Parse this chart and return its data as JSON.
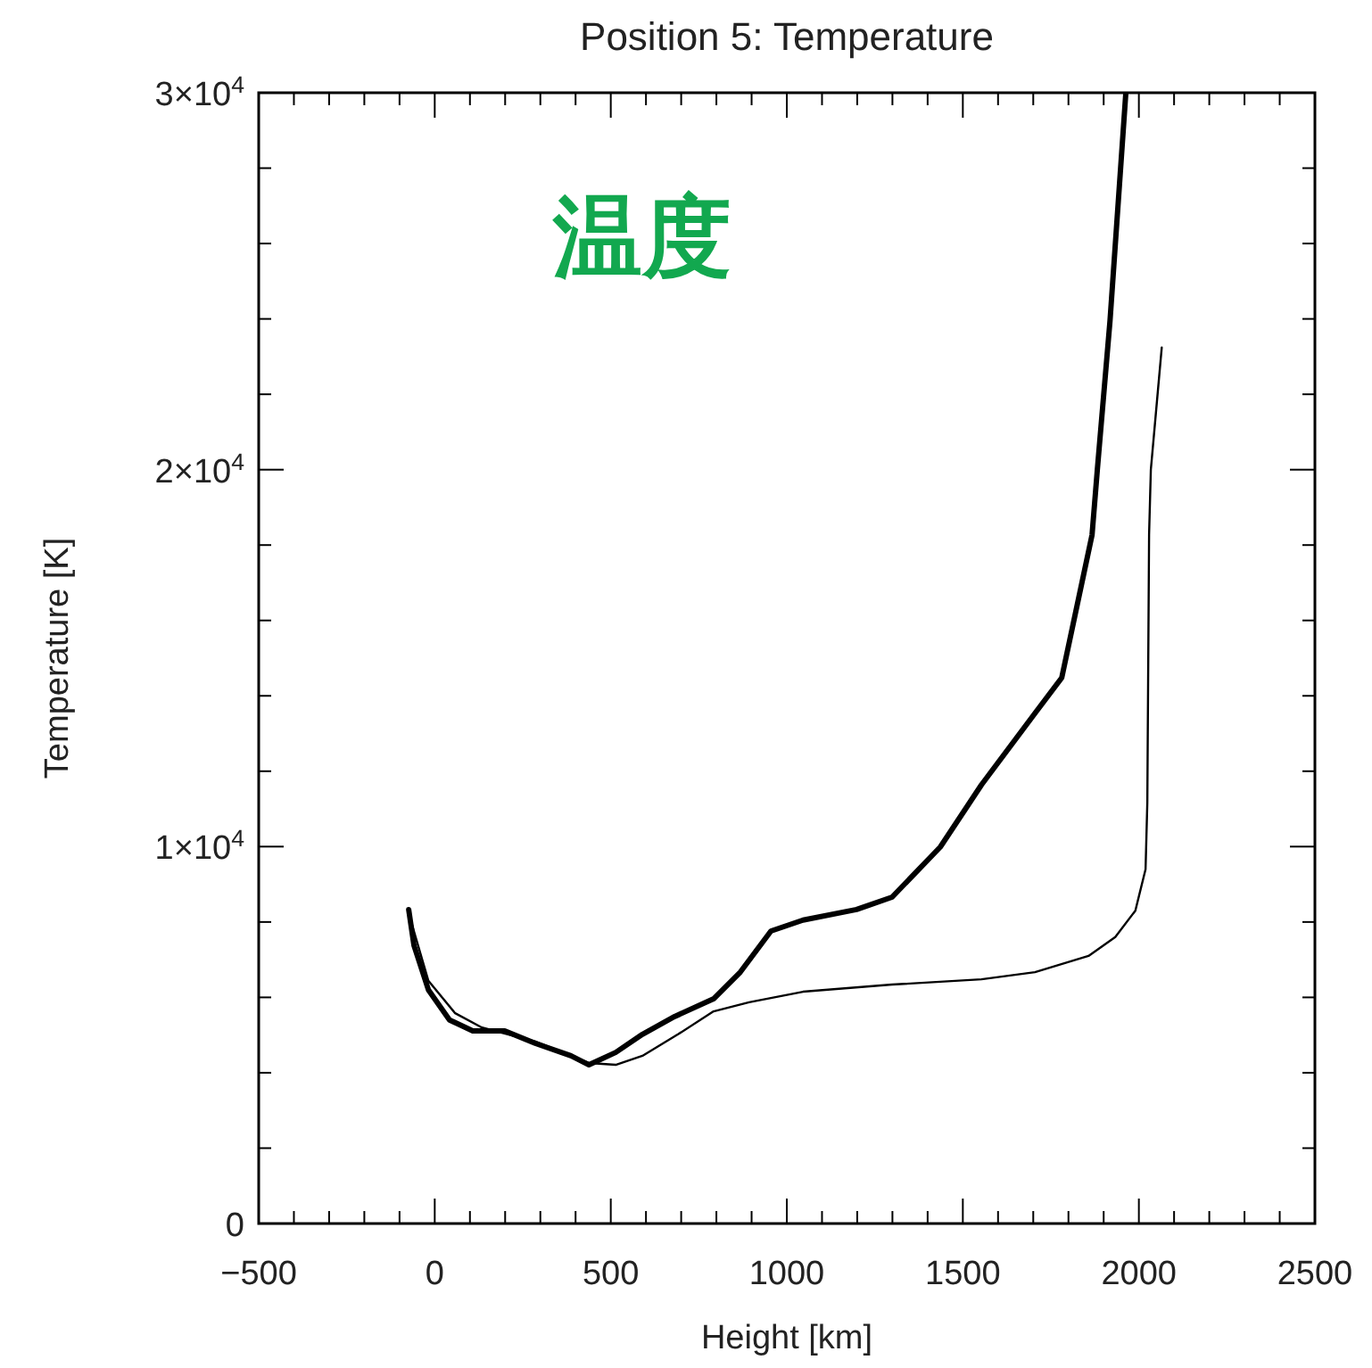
{
  "chart_data": {
    "type": "line",
    "title": "Position 5: Temperature",
    "xlabel": "Height [km]",
    "ylabel": "Temperature [K]",
    "annotations": [
      "温度"
    ],
    "xlim": [
      -500,
      2500
    ],
    "ylim": [
      0,
      30000
    ],
    "xticks": [
      -500,
      {
        "value": -400,
        "label": null
      },
      {
        "value": -300,
        "label": null
      },
      {
        "value": -200,
        "label": null
      },
      {
        "value": -100,
        "label": null
      },
      0,
      {
        "value": 100,
        "label": null
      },
      {
        "value": 200,
        "label": null
      },
      {
        "value": 300,
        "label": null
      },
      {
        "value": 400,
        "label": null
      },
      500,
      {
        "value": 600,
        "label": null
      },
      {
        "value": 700,
        "label": null
      },
      {
        "value": 800,
        "label": null
      },
      {
        "value": 900,
        "label": null
      },
      1000,
      {
        "value": 1100,
        "label": null
      },
      {
        "value": 1200,
        "label": null
      },
      {
        "value": 1300,
        "label": null
      },
      {
        "value": 1400,
        "label": null
      },
      1500,
      {
        "value": 1600,
        "label": null
      },
      {
        "value": 1700,
        "label": null
      },
      {
        "value": 1800,
        "label": null
      },
      {
        "value": 1900,
        "label": null
      },
      2000,
      {
        "value": 2100,
        "label": null
      },
      {
        "value": 2200,
        "label": null
      },
      {
        "value": 2300,
        "label": null
      },
      {
        "value": 2400,
        "label": null
      },
      2500
    ],
    "yticks": [
      0,
      {
        "value": 2000,
        "label": null
      },
      {
        "value": 4000,
        "label": null
      },
      {
        "value": 6000,
        "label": null
      },
      {
        "value": 8000,
        "label": null
      },
      {
        "value": 10000,
        "label": "1×10$^{4}$"
      },
      {
        "value": 12000,
        "label": null
      },
      {
        "value": 14000,
        "label": null
      },
      {
        "value": 16000,
        "label": null
      },
      {
        "value": 18000,
        "label": null
      },
      {
        "value": 20000,
        "label": "2×10$^{4}$"
      },
      {
        "value": 22000,
        "label": null
      },
      {
        "value": 24000,
        "label": null
      },
      {
        "value": 26000,
        "label": null
      },
      {
        "value": 28000,
        "label": null
      },
      {
        "value": 30000,
        "label": "3×10$^{4}$"
      }
    ],
    "grid": false,
    "series": [
      {
        "color": "#000000",
        "x": [
          -74,
          -59,
          -18,
          42,
          108,
          199,
          286,
          387,
          438,
          514,
          590,
          681,
          792,
          868,
          955,
          1046,
          1198,
          1299,
          1436,
          1553,
          1705,
          1781,
          1867,
          1882,
          1918,
          1963
        ],
        "values": [
          8330,
          7380,
          6200,
          5400,
          5110,
          5110,
          4780,
          4450,
          4210,
          4540,
          5020,
          5490,
          5960,
          6670,
          7760,
          8050,
          8330,
          8660,
          9990,
          11640,
          13540,
          14480,
          18270,
          20000,
          23950,
          30000
        ]
      },
      {
        "color": "#000000",
        "x": [
          -74,
          -18,
          58,
          134,
          286,
          438,
          514,
          590,
          691,
          792,
          893,
          1046,
          1299,
          1553,
          1705,
          1857,
          1933,
          1990,
          2019,
          2024,
          2029,
          2034,
          2065
        ],
        "values": [
          8230,
          6440,
          5580,
          5200,
          4830,
          4260,
          4210,
          4450,
          5020,
          5630,
          5870,
          6150,
          6340,
          6480,
          6670,
          7100,
          7600,
          8300,
          9400,
          11170,
          18270,
          20000,
          23240
        ]
      }
    ]
  }
}
